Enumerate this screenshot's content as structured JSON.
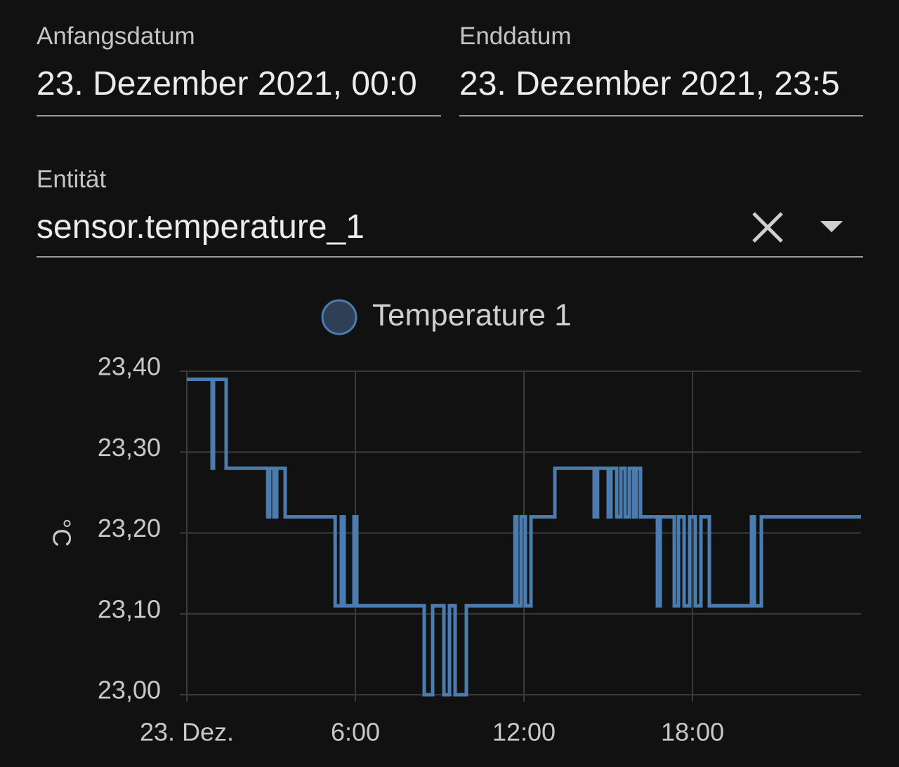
{
  "form": {
    "start_date": {
      "label": "Anfangsdatum",
      "value": "23. Dezember 2021, 00:0"
    },
    "end_date": {
      "label": "Enddatum",
      "value": "23. Dezember 2021, 23:5"
    },
    "entity": {
      "label": "Entität",
      "value": "sensor.temperature_1"
    }
  },
  "chart_data": {
    "type": "line",
    "step": true,
    "y_label": "°C",
    "x": [
      0,
      0.9,
      0.95,
      1.4,
      2.88,
      2.95,
      3.1,
      3.2,
      3.5,
      5.28,
      5.5,
      5.6,
      5.95,
      6.05,
      8.45,
      8.75,
      9.15,
      9.35,
      9.55,
      9.95,
      11.68,
      11.75,
      11.9,
      12.05,
      12.25,
      12.75,
      13.1,
      14.5,
      14.62,
      15.0,
      15.1,
      15.3,
      15.45,
      15.6,
      15.75,
      15.9,
      16.0,
      16.15,
      16.75,
      16.85,
      17.35,
      17.5,
      17.7,
      17.9,
      18.1,
      18.3,
      18.6,
      20.1,
      20.2,
      20.45,
      24
    ],
    "series": [
      {
        "name": "Temperature 1",
        "color": "#4a7cb0",
        "values": [
          23.39,
          23.28,
          23.39,
          23.28,
          23.22,
          23.28,
          23.22,
          23.28,
          23.22,
          23.11,
          23.22,
          23.11,
          23.22,
          23.11,
          23.0,
          23.11,
          23.0,
          23.11,
          23.0,
          23.11,
          23.22,
          23.11,
          23.22,
          23.11,
          23.22,
          23.22,
          23.28,
          23.22,
          23.28,
          23.22,
          23.28,
          23.22,
          23.28,
          23.22,
          23.28,
          23.22,
          23.28,
          23.22,
          23.11,
          23.22,
          23.11,
          23.22,
          23.11,
          23.22,
          23.11,
          23.22,
          23.11,
          23.22,
          23.11,
          23.22,
          23.22
        ]
      }
    ],
    "xlim": [
      0,
      24
    ],
    "xticks": [
      {
        "value": 0,
        "label": "23. Dez."
      },
      {
        "value": 6,
        "label": "6:00"
      },
      {
        "value": 12,
        "label": "12:00"
      },
      {
        "value": 18,
        "label": "18:00"
      }
    ],
    "ylim": [
      23.0,
      23.4
    ],
    "yticks": [
      {
        "value": 23.0,
        "label": "23,00"
      },
      {
        "value": 23.1,
        "label": "23,10"
      },
      {
        "value": 23.2,
        "label": "23,20"
      },
      {
        "value": 23.3,
        "label": "23,30"
      },
      {
        "value": 23.4,
        "label": "23,40"
      }
    ],
    "grid": true
  }
}
